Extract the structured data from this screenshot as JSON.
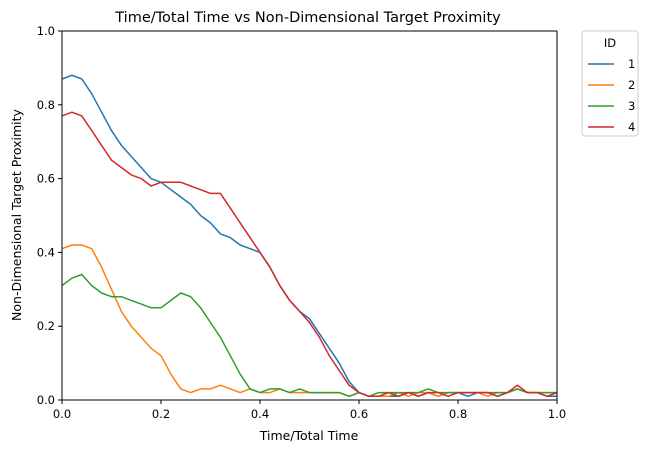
{
  "chart_data": {
    "type": "line",
    "title": "Time/Total Time vs Non-Dimensional Target Proximity",
    "xlabel": "Time/Total Time",
    "ylabel": "Non-Dimensional Target Proximity",
    "xlim": [
      0,
      1
    ],
    "ylim": [
      0,
      1
    ],
    "xticks": [
      "0.0",
      "0.2",
      "0.4",
      "0.6",
      "0.8",
      "1.0"
    ],
    "yticks": [
      "0.0",
      "0.2",
      "0.4",
      "0.6",
      "0.8",
      "1.0"
    ],
    "grid": false,
    "legend": {
      "title": "ID",
      "placement": "outside-top-right"
    },
    "series": [
      {
        "name": "1",
        "color": "#1f77b4",
        "x": [
          0,
          0.02,
          0.04,
          0.06,
          0.08,
          0.1,
          0.12,
          0.14,
          0.16,
          0.18,
          0.2,
          0.22,
          0.24,
          0.26,
          0.28,
          0.3,
          0.32,
          0.34,
          0.36,
          0.38,
          0.4,
          0.42,
          0.44,
          0.46,
          0.48,
          0.5,
          0.52,
          0.54,
          0.56,
          0.58,
          0.6,
          0.62,
          0.64,
          0.66,
          0.68,
          0.7,
          0.72,
          0.74,
          0.76,
          0.78,
          0.8,
          0.82,
          0.84,
          0.86,
          0.88,
          0.9,
          0.92,
          0.94,
          0.96,
          0.98,
          1.0
        ],
        "y": [
          0.87,
          0.88,
          0.87,
          0.83,
          0.78,
          0.73,
          0.69,
          0.66,
          0.63,
          0.6,
          0.59,
          0.57,
          0.55,
          0.53,
          0.5,
          0.48,
          0.45,
          0.44,
          0.42,
          0.41,
          0.4,
          0.36,
          0.31,
          0.27,
          0.24,
          0.22,
          0.18,
          0.14,
          0.1,
          0.05,
          0.02,
          0.01,
          0.01,
          0.01,
          0.01,
          0.02,
          0.01,
          0.02,
          0.01,
          0.02,
          0.02,
          0.01,
          0.02,
          0.02,
          0.01,
          0.02,
          0.03,
          0.02,
          0.02,
          0.01,
          0.01
        ]
      },
      {
        "name": "2",
        "color": "#ff7f0e",
        "x": [
          0,
          0.02,
          0.04,
          0.06,
          0.08,
          0.1,
          0.12,
          0.14,
          0.16,
          0.18,
          0.2,
          0.22,
          0.24,
          0.26,
          0.28,
          0.3,
          0.32,
          0.34,
          0.36,
          0.38,
          0.4,
          0.42,
          0.44,
          0.46,
          0.48,
          0.5,
          0.52,
          0.54,
          0.56,
          0.58,
          0.6,
          0.62,
          0.64,
          0.66,
          0.68,
          0.7,
          0.72,
          0.74,
          0.76,
          0.78,
          0.8,
          0.82,
          0.84,
          0.86,
          0.88,
          0.9,
          0.92,
          0.94,
          0.96,
          0.98,
          1.0
        ],
        "y": [
          0.41,
          0.42,
          0.42,
          0.41,
          0.36,
          0.3,
          0.24,
          0.2,
          0.17,
          0.14,
          0.12,
          0.07,
          0.03,
          0.02,
          0.03,
          0.03,
          0.04,
          0.03,
          0.02,
          0.03,
          0.02,
          0.02,
          0.03,
          0.02,
          0.02,
          0.02,
          0.02,
          0.02,
          0.02,
          0.01,
          0.02,
          0.01,
          0.01,
          0.01,
          0.02,
          0.01,
          0.02,
          0.02,
          0.01,
          0.02,
          0.02,
          0.02,
          0.02,
          0.01,
          0.02,
          0.02,
          0.03,
          0.02,
          0.02,
          0.02,
          0.02
        ]
      },
      {
        "name": "3",
        "color": "#2ca02c",
        "x": [
          0,
          0.02,
          0.04,
          0.06,
          0.08,
          0.1,
          0.12,
          0.14,
          0.16,
          0.18,
          0.2,
          0.22,
          0.24,
          0.26,
          0.28,
          0.3,
          0.32,
          0.34,
          0.36,
          0.38,
          0.4,
          0.42,
          0.44,
          0.46,
          0.48,
          0.5,
          0.52,
          0.54,
          0.56,
          0.58,
          0.6,
          0.62,
          0.64,
          0.66,
          0.68,
          0.7,
          0.72,
          0.74,
          0.76,
          0.78,
          0.8,
          0.82,
          0.84,
          0.86,
          0.88,
          0.9,
          0.92,
          0.94,
          0.96,
          0.98,
          1.0
        ],
        "y": [
          0.31,
          0.33,
          0.34,
          0.31,
          0.29,
          0.28,
          0.28,
          0.27,
          0.26,
          0.25,
          0.25,
          0.27,
          0.29,
          0.28,
          0.25,
          0.21,
          0.17,
          0.12,
          0.07,
          0.03,
          0.02,
          0.03,
          0.03,
          0.02,
          0.03,
          0.02,
          0.02,
          0.02,
          0.02,
          0.01,
          0.02,
          0.01,
          0.02,
          0.02,
          0.02,
          0.02,
          0.02,
          0.03,
          0.02,
          0.02,
          0.02,
          0.02,
          0.02,
          0.02,
          0.02,
          0.02,
          0.03,
          0.02,
          0.02,
          0.02,
          0.02
        ]
      },
      {
        "name": "4",
        "color": "#d62728",
        "x": [
          0,
          0.02,
          0.04,
          0.06,
          0.08,
          0.1,
          0.12,
          0.14,
          0.16,
          0.18,
          0.2,
          0.22,
          0.24,
          0.26,
          0.28,
          0.3,
          0.32,
          0.34,
          0.36,
          0.38,
          0.4,
          0.42,
          0.44,
          0.46,
          0.48,
          0.5,
          0.52,
          0.54,
          0.56,
          0.58,
          0.6,
          0.62,
          0.64,
          0.66,
          0.68,
          0.7,
          0.72,
          0.74,
          0.76,
          0.78,
          0.8,
          0.82,
          0.84,
          0.86,
          0.88,
          0.9,
          0.92,
          0.94,
          0.96,
          0.98,
          1.0
        ],
        "y": [
          0.77,
          0.78,
          0.77,
          0.73,
          0.69,
          0.65,
          0.63,
          0.61,
          0.6,
          0.58,
          0.59,
          0.59,
          0.59,
          0.58,
          0.57,
          0.56,
          0.56,
          0.52,
          0.48,
          0.44,
          0.4,
          0.36,
          0.31,
          0.27,
          0.24,
          0.21,
          0.17,
          0.12,
          0.08,
          0.04,
          0.02,
          0.01,
          0.01,
          0.02,
          0.01,
          0.02,
          0.01,
          0.02,
          0.02,
          0.01,
          0.02,
          0.02,
          0.02,
          0.02,
          0.01,
          0.02,
          0.04,
          0.02,
          0.02,
          0.01,
          0.02
        ]
      }
    ]
  }
}
